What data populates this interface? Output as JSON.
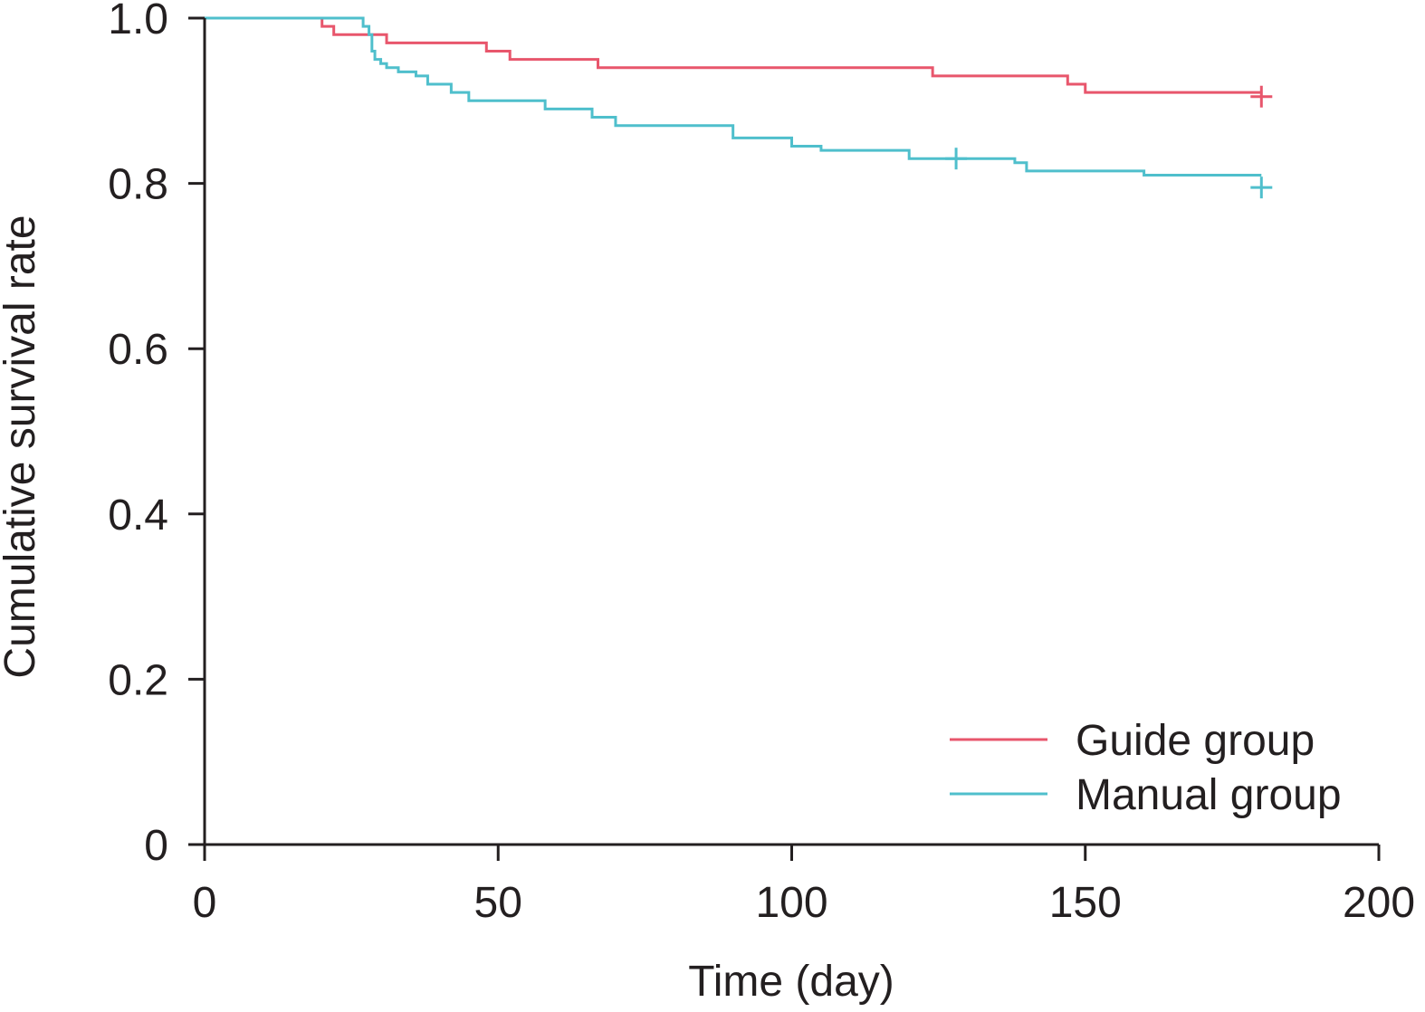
{
  "chart_data": {
    "type": "line",
    "subtype": "kaplan-meier-step",
    "title": "",
    "xlabel": "Time (day)",
    "ylabel": "Cumulative survival rate",
    "xlim": [
      0,
      200
    ],
    "ylim": [
      0,
      1.0
    ],
    "x_ticks": [
      0,
      50,
      100,
      150,
      200
    ],
    "x_tick_labels": [
      "0",
      "50",
      "100",
      "150",
      "200"
    ],
    "y_ticks": [
      0,
      0.2,
      0.4,
      0.6,
      0.8,
      1.0
    ],
    "y_tick_labels": [
      "0",
      "0.2",
      "0.4",
      "0.6",
      "0.8",
      "1.0"
    ],
    "grid": false,
    "legend_position": "bottom-right",
    "series": [
      {
        "name": "Guide group",
        "color": "#e8566c",
        "x": [
          0,
          20,
          22,
          31,
          48,
          52,
          67,
          124,
          147,
          150,
          180
        ],
        "y": [
          1.0,
          0.99,
          0.98,
          0.97,
          0.96,
          0.95,
          0.94,
          0.93,
          0.92,
          0.91,
          0.91
        ],
        "censored": [
          {
            "x": 180,
            "y": 0.905
          }
        ]
      },
      {
        "name": "Manual group",
        "color": "#4fbfcc",
        "x": [
          0,
          27,
          28,
          28.5,
          29,
          30,
          31,
          33,
          36,
          38,
          42,
          45,
          58,
          66,
          70,
          90,
          100,
          105,
          120,
          138,
          140,
          160,
          180
        ],
        "y": [
          1.0,
          0.99,
          0.98,
          0.96,
          0.95,
          0.945,
          0.94,
          0.935,
          0.93,
          0.92,
          0.91,
          0.9,
          0.89,
          0.88,
          0.87,
          0.855,
          0.845,
          0.84,
          0.83,
          0.825,
          0.815,
          0.81,
          0.81
        ],
        "censored": [
          {
            "x": 128,
            "y": 0.83
          },
          {
            "x": 180,
            "y": 0.795
          }
        ]
      }
    ]
  }
}
